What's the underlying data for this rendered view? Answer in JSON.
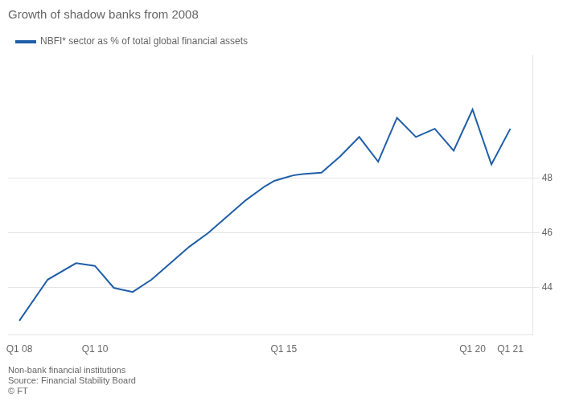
{
  "chart_data": {
    "type": "line",
    "title": "Growth of shadow banks from 2008",
    "x": [
      2008,
      2008.75,
      2009.5,
      2010,
      2010.5,
      2011,
      2011.5,
      2012,
      2012.5,
      2013,
      2013.5,
      2014,
      2014.5,
      2014.75,
      2015,
      2015.25,
      2015.5,
      2016,
      2016.5,
      2017,
      2017.5,
      2018,
      2018.5,
      2019,
      2019.5,
      2020,
      2020.5,
      2021
    ],
    "series": [
      {
        "name": "NBFI* sector as % of total global financial assets",
        "color": "#1f5ea8",
        "values": [
          42.8,
          44.3,
          44.9,
          44.8,
          44.0,
          43.85,
          44.3,
          44.9,
          45.5,
          46.0,
          46.6,
          47.2,
          47.7,
          47.9,
          48.0,
          48.1,
          48.15,
          48.2,
          48.8,
          49.5,
          48.6,
          50.2,
          49.5,
          49.8,
          49.0,
          50.5,
          48.5,
          49.8
        ]
      }
    ],
    "xlim": [
      2007.7,
      2021.6
    ],
    "xticks": [
      {
        "value": 2008,
        "label": "Q1 08"
      },
      {
        "value": 2010,
        "label": "Q1 10"
      },
      {
        "value": 2015,
        "label": "Q1 15"
      },
      {
        "value": 2020,
        "label": "Q1 20"
      },
      {
        "value": 2021,
        "label": "Q1 21"
      }
    ],
    "ylim": [
      42.3,
      52.5
    ],
    "yticks": [
      44,
      46,
      48
    ],
    "grid": "y",
    "legend": "top-left",
    "annotations": [
      "Non-bank financial institutions",
      "Source: Financial Stability Board",
      "© FT"
    ]
  }
}
